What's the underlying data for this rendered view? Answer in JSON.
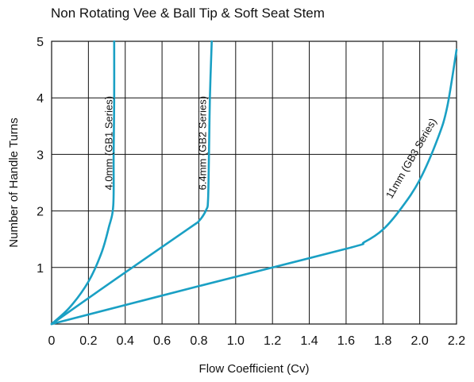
{
  "chart_data": {
    "type": "line",
    "title": "Non Rotating Vee & Ball Tip & Soft Seat Stem",
    "xlabel": "Flow Coefficient (Cv)",
    "ylabel": "Number of Handle Turns",
    "xlim": [
      0,
      2.2
    ],
    "ylim": [
      0,
      5
    ],
    "x_ticks": [
      "0",
      "0.2",
      "0.4",
      "0.6",
      "0.8",
      "1.0",
      "1.2",
      "1.4",
      "1.6",
      "1.8",
      "2.0",
      "2.2"
    ],
    "y_ticks": [
      "1",
      "2",
      "3",
      "4",
      "5"
    ],
    "grid": true,
    "line_color": "#1aa0c4",
    "series": [
      {
        "name": "4.0mm (GB1 Series)",
        "points": [
          [
            0,
            0
          ],
          [
            0.1,
            0.3
          ],
          [
            0.2,
            0.75
          ],
          [
            0.27,
            1.25
          ],
          [
            0.31,
            1.7
          ],
          [
            0.335,
            2.1
          ],
          [
            0.337,
            3.0
          ],
          [
            0.34,
            4.0
          ],
          [
            0.34,
            5.0
          ]
        ]
      },
      {
        "name": "6.4mm (GB2 Series)",
        "points": [
          [
            0,
            0
          ],
          [
            0.35,
            0.8
          ],
          [
            0.75,
            1.7
          ],
          [
            0.8,
            1.82
          ],
          [
            0.84,
            2.02
          ],
          [
            0.85,
            2.2
          ],
          [
            0.855,
            3.0
          ],
          [
            0.86,
            4.0
          ],
          [
            0.87,
            5.0
          ]
        ]
      },
      {
        "name": "11mm (GB3 Series)",
        "points": [
          [
            0,
            0
          ],
          [
            0.8,
            0.67
          ],
          [
            1.6,
            1.33
          ],
          [
            1.7,
            1.45
          ],
          [
            1.8,
            1.67
          ],
          [
            1.9,
            2.05
          ],
          [
            2.0,
            2.55
          ],
          [
            2.1,
            3.3
          ],
          [
            2.15,
            3.85
          ],
          [
            2.2,
            4.85
          ]
        ]
      }
    ]
  }
}
